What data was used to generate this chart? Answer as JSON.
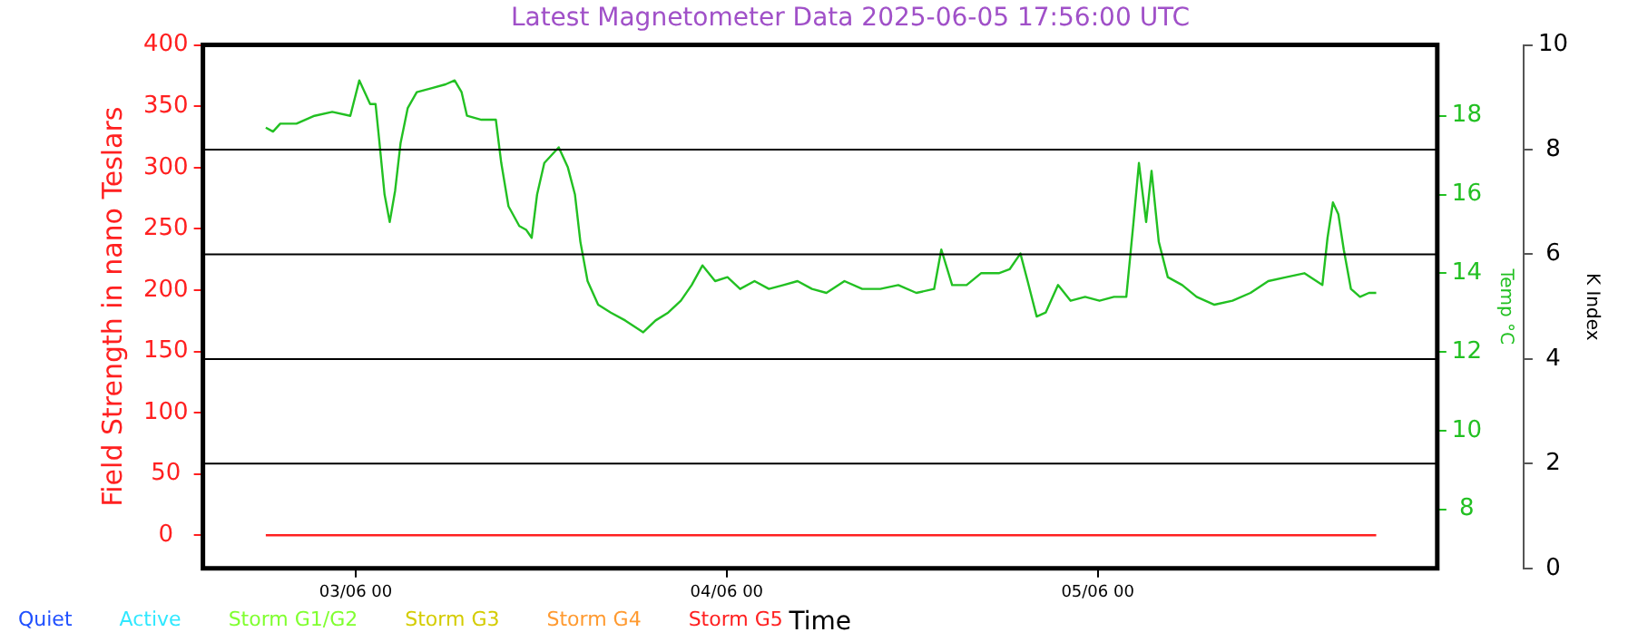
{
  "chart_data": {
    "type": "line",
    "title": "Latest Magnetometer Data 2025-06-05 17:56:00 UTC",
    "xlabel": "Time",
    "ylabel": "Field Strength in nano Teslars",
    "y2label": "Temp °C",
    "y3label": "K Index",
    "xlim": [
      "2025-06-02T14:07",
      "2025-06-05T21:58"
    ],
    "xticks": [
      {
        "value": "2025-06-03T00:00",
        "label": "03/06 00"
      },
      {
        "value": "2025-06-04T00:00",
        "label": "04/06 00"
      },
      {
        "value": "2025-06-05T00:00",
        "label": "05/06 00"
      }
    ],
    "ylim": [
      -27,
      400
    ],
    "yticks": [
      0,
      50,
      100,
      150,
      200,
      250,
      300,
      350,
      400
    ],
    "y2lim": [
      6.5,
      19.8
    ],
    "y2ticks": [
      8,
      10,
      12,
      14,
      16,
      18
    ],
    "y3lim": [
      0,
      10
    ],
    "y3ticks": [
      0,
      2,
      4,
      6,
      8,
      10
    ],
    "ref_lines": [
      {
        "axis": "y3",
        "value": 2,
        "color": "#000000"
      },
      {
        "axis": "y3",
        "value": 4,
        "color": "#000000"
      },
      {
        "axis": "y3",
        "value": 6,
        "color": "#000000"
      },
      {
        "axis": "y3",
        "value": 8,
        "color": "#000000"
      }
    ],
    "marker": "none",
    "line_style": "solid",
    "series": [
      {
        "color": "#ff2020",
        "x": [
          "2025-06-02T18:11",
          "2025-06-05T18:01"
        ],
        "values": [
          0,
          0
        ]
      },
      {
        "axis": "y2",
        "color": "#22c022",
        "x": [
          "2025-06-02T18:11",
          "2025-06-02T18:39",
          "2025-06-02T19:07",
          "2025-06-02T20:10",
          "2025-06-02T21:20",
          "2025-06-02T22:29",
          "2025-06-02T23:39",
          "2025-06-03T00:14",
          "2025-06-03T00:56",
          "2025-06-03T01:17",
          "2025-06-03T01:31",
          "2025-06-03T01:52",
          "2025-06-03T02:12",
          "2025-06-03T02:33",
          "2025-06-03T02:54",
          "2025-06-03T03:22",
          "2025-06-03T03:57",
          "2025-06-03T04:53",
          "2025-06-03T05:49",
          "2025-06-03T06:24",
          "2025-06-03T06:51",
          "2025-06-03T07:12",
          "2025-06-03T08:08",
          "2025-06-03T09:04",
          "2025-06-03T09:25",
          "2025-06-03T09:53",
          "2025-06-03T10:35",
          "2025-06-03T11:02",
          "2025-06-03T11:23",
          "2025-06-03T11:44",
          "2025-06-03T12:12",
          "2025-06-03T13:08",
          "2025-06-03T13:43",
          "2025-06-03T14:11",
          "2025-06-03T14:32",
          "2025-06-03T15:00",
          "2025-06-03T15:41",
          "2025-06-03T16:30",
          "2025-06-03T17:26",
          "2025-06-03T18:36",
          "2025-06-03T19:24",
          "2025-06-03T20:13",
          "2025-06-03T21:02",
          "2025-06-03T21:44",
          "2025-06-03T22:26",
          "2025-06-03T23:15",
          "2025-06-04T00:03",
          "2025-06-04T00:52",
          "2025-06-04T01:48",
          "2025-06-04T02:44",
          "2025-06-04T03:40",
          "2025-06-04T04:35",
          "2025-06-04T05:31",
          "2025-06-04T06:27",
          "2025-06-04T07:37",
          "2025-06-04T08:46",
          "2025-06-04T09:56",
          "2025-06-04T11:06",
          "2025-06-04T12:16",
          "2025-06-04T13:25",
          "2025-06-04T13:53",
          "2025-06-04T14:35",
          "2025-06-04T15:31",
          "2025-06-04T16:27",
          "2025-06-04T17:36",
          "2025-06-04T18:18",
          "2025-06-04T19:00",
          "2025-06-04T19:28",
          "2025-06-04T20:03",
          "2025-06-04T20:38",
          "2025-06-04T21:26",
          "2025-06-04T22:15",
          "2025-06-04T23:11",
          "2025-06-05T00:07",
          "2025-06-05T01:03",
          "2025-06-05T01:51",
          "2025-06-05T02:19",
          "2025-06-05T02:40",
          "2025-06-05T03:08",
          "2025-06-05T03:29",
          "2025-06-05T03:57",
          "2025-06-05T04:32",
          "2025-06-05T05:28",
          "2025-06-05T06:24",
          "2025-06-05T07:33",
          "2025-06-05T08:43",
          "2025-06-05T09:53",
          "2025-06-05T11:02",
          "2025-06-05T12:12",
          "2025-06-05T13:22",
          "2025-06-05T14:32",
          "2025-06-05T14:52",
          "2025-06-05T15:13",
          "2025-06-05T15:34",
          "2025-06-05T15:55",
          "2025-06-05T16:23",
          "2025-06-05T16:58",
          "2025-06-05T17:33",
          "2025-06-05T18:01"
        ],
        "values": [
          17.7,
          17.6,
          17.8,
          17.8,
          18.0,
          18.1,
          18.0,
          18.9,
          18.3,
          18.3,
          17.4,
          16.0,
          15.3,
          16.1,
          17.3,
          18.2,
          18.6,
          18.7,
          18.8,
          18.9,
          18.6,
          18.0,
          17.9,
          17.9,
          16.8,
          15.7,
          15.2,
          15.1,
          14.9,
          16.0,
          16.8,
          17.2,
          16.7,
          16.0,
          14.8,
          13.8,
          13.2,
          13.0,
          12.8,
          12.5,
          12.8,
          13.0,
          13.3,
          13.7,
          14.2,
          13.8,
          13.9,
          13.6,
          13.8,
          13.6,
          13.7,
          13.8,
          13.6,
          13.5,
          13.8,
          13.6,
          13.6,
          13.7,
          13.5,
          13.6,
          14.6,
          13.7,
          13.7,
          14.0,
          14.0,
          14.1,
          14.5,
          13.8,
          12.9,
          13.0,
          13.7,
          13.3,
          13.4,
          13.3,
          13.4,
          13.4,
          15.3,
          16.8,
          15.3,
          16.6,
          14.8,
          13.9,
          13.7,
          13.4,
          13.2,
          13.3,
          13.5,
          13.8,
          13.9,
          14.0,
          13.7,
          14.9,
          15.8,
          15.5,
          14.6,
          13.6,
          13.4,
          13.5,
          13.5
        ]
      },
      {
        "type": "bar",
        "axis": "y3",
        "name": "Quiet",
        "color": "#2050ff"
      },
      {
        "type": "bar",
        "axis": "y3",
        "name": "Active",
        "color": "#30e8ff"
      },
      {
        "type": "bar",
        "axis": "y3",
        "name": "Storm G1/G2",
        "color": "#80ff30"
      },
      {
        "type": "bar",
        "axis": "y3",
        "name": "Storm G3",
        "color": "#d4cc00"
      },
      {
        "type": "bar",
        "axis": "y3",
        "name": "Storm G4",
        "color": "#ff9a30"
      },
      {
        "type": "bar",
        "axis": "y3",
        "name": "Storm G5",
        "color": "#ff2020"
      }
    ]
  }
}
